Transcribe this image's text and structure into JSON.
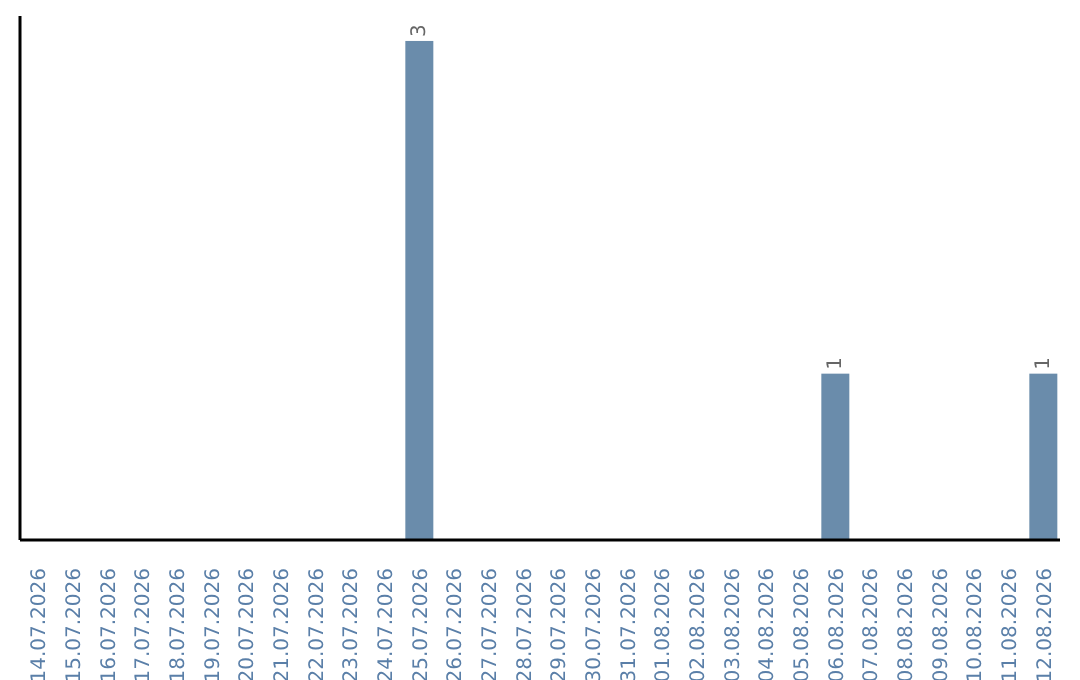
{
  "chart_data": {
    "type": "bar",
    "categories": [
      "14.07.2026",
      "15.07.2026",
      "16.07.2026",
      "17.07.2026",
      "18.07.2026",
      "19.07.2026",
      "20.07.2026",
      "21.07.2026",
      "22.07.2026",
      "23.07.2026",
      "24.07.2026",
      "25.07.2026",
      "26.07.2026",
      "27.07.2026",
      "28.07.2026",
      "29.07.2026",
      "30.07.2026",
      "31.07.2026",
      "01.08.2026",
      "02.08.2026",
      "03.08.2026",
      "04.08.2026",
      "05.08.2026",
      "06.08.2026",
      "07.08.2026",
      "08.08.2026",
      "09.08.2026",
      "10.08.2026",
      "11.08.2026",
      "12.08.2026"
    ],
    "values": [
      null,
      null,
      null,
      null,
      null,
      null,
      null,
      null,
      null,
      null,
      null,
      3,
      null,
      null,
      null,
      null,
      null,
      null,
      null,
      null,
      null,
      null,
      null,
      1,
      null,
      null,
      null,
      null,
      null,
      1
    ],
    "value_labels": [
      null,
      null,
      null,
      null,
      null,
      null,
      null,
      null,
      null,
      null,
      null,
      "3",
      null,
      null,
      null,
      null,
      null,
      null,
      null,
      null,
      null,
      null,
      null,
      "1",
      null,
      null,
      null,
      null,
      null,
      "1"
    ],
    "color": "#6a8cab",
    "grid": false,
    "legend": false
  }
}
